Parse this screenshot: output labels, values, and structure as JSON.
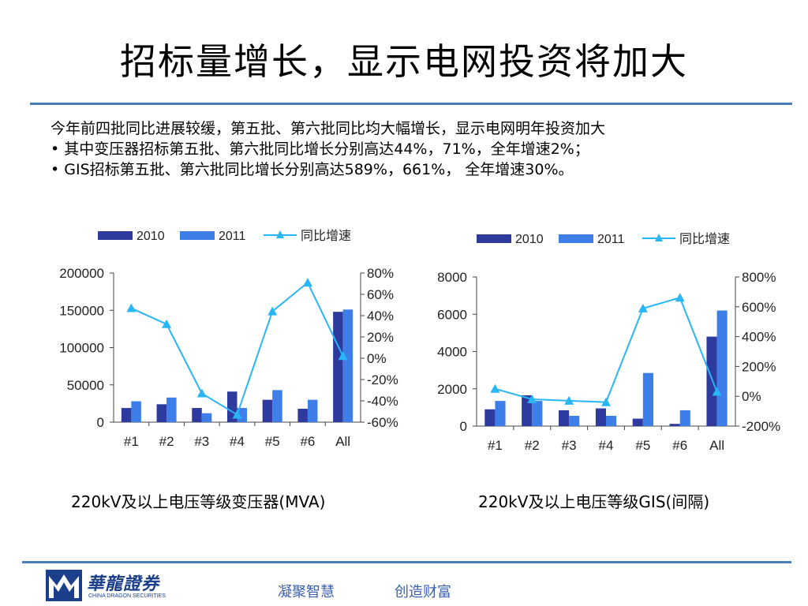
{
  "slide": {
    "title": "招标量增长，显示电网投资将加大",
    "intro": "今年前四批同比进展较缓，第五批、第六批同比均大幅增长，显示电网明年投资加大",
    "bullet1": "• 其中变压器招标第五批、第六批同比增长分别高达44%，71%，全年增速2%；",
    "bullet2": "• GIS招标第五批、第六批同比增长分别高达589%，661%， 全年增速30%。"
  },
  "footer": {
    "logo_cn": "華龍證券",
    "logo_en": "CHINA DRAGON SECURITIES",
    "slogan1": "凝聚智慧",
    "slogan2": "创造财富"
  },
  "colors": {
    "s2010": "#2e3a9e",
    "s2011": "#3d7ee8",
    "growth": "#29b6f6",
    "rule": "#4a7ebb"
  },
  "chart_data": [
    {
      "type": "bar",
      "title": "220kV及以上电压等级变压器(MVA)",
      "categories": [
        "#1",
        "#2",
        "#3",
        "#4",
        "#5",
        "#6",
        "All"
      ],
      "series": [
        {
          "name": "2010",
          "type": "bar",
          "axis": "left",
          "values": [
            19000,
            24000,
            19000,
            41000,
            30000,
            18000,
            148000
          ]
        },
        {
          "name": "2011",
          "type": "bar",
          "axis": "left",
          "values": [
            28000,
            33000,
            12000,
            19000,
            43000,
            30000,
            151000
          ]
        },
        {
          "name": "同比增速",
          "type": "line",
          "axis": "right",
          "values": [
            47,
            32,
            -33,
            -53,
            44,
            71,
            2
          ]
        }
      ],
      "yleft": {
        "min": 0,
        "max": 200000,
        "ticks": [
          0,
          50000,
          100000,
          150000,
          200000
        ],
        "labels": [
          "0",
          "50000",
          "100000",
          "150000",
          "200000"
        ]
      },
      "yright": {
        "min": -60,
        "max": 80,
        "ticks": [
          -60,
          -40,
          -20,
          0,
          20,
          40,
          60,
          80
        ],
        "labels": [
          "-60%",
          "-40%",
          "-20%",
          "0%",
          "20%",
          "40%",
          "60%",
          "80%"
        ]
      },
      "legend": "top"
    },
    {
      "type": "bar",
      "title": "220kV及以上电压等级GIS(间隔)",
      "categories": [
        "#1",
        "#2",
        "#3",
        "#4",
        "#5",
        "#6",
        "All"
      ],
      "series": [
        {
          "name": "2010",
          "type": "bar",
          "axis": "left",
          "values": [
            900,
            1650,
            850,
            950,
            400,
            120,
            4800
          ]
        },
        {
          "name": "2011",
          "type": "bar",
          "axis": "left",
          "values": [
            1350,
            1350,
            550,
            550,
            2850,
            850,
            6200
          ]
        },
        {
          "name": "同比增速",
          "type": "line",
          "axis": "right",
          "values": [
            50,
            -20,
            -30,
            -40,
            589,
            661,
            30
          ]
        }
      ],
      "yleft": {
        "min": 0,
        "max": 8000,
        "ticks": [
          0,
          2000,
          4000,
          6000,
          8000
        ],
        "labels": [
          "0",
          "2000",
          "4000",
          "6000",
          "8000"
        ]
      },
      "yright": {
        "min": -200,
        "max": 800,
        "ticks": [
          -200,
          0,
          200,
          400,
          600,
          800
        ],
        "labels": [
          "-200%",
          "0%",
          "200%",
          "400%",
          "600%",
          "800%"
        ]
      },
      "legend": "top"
    }
  ]
}
